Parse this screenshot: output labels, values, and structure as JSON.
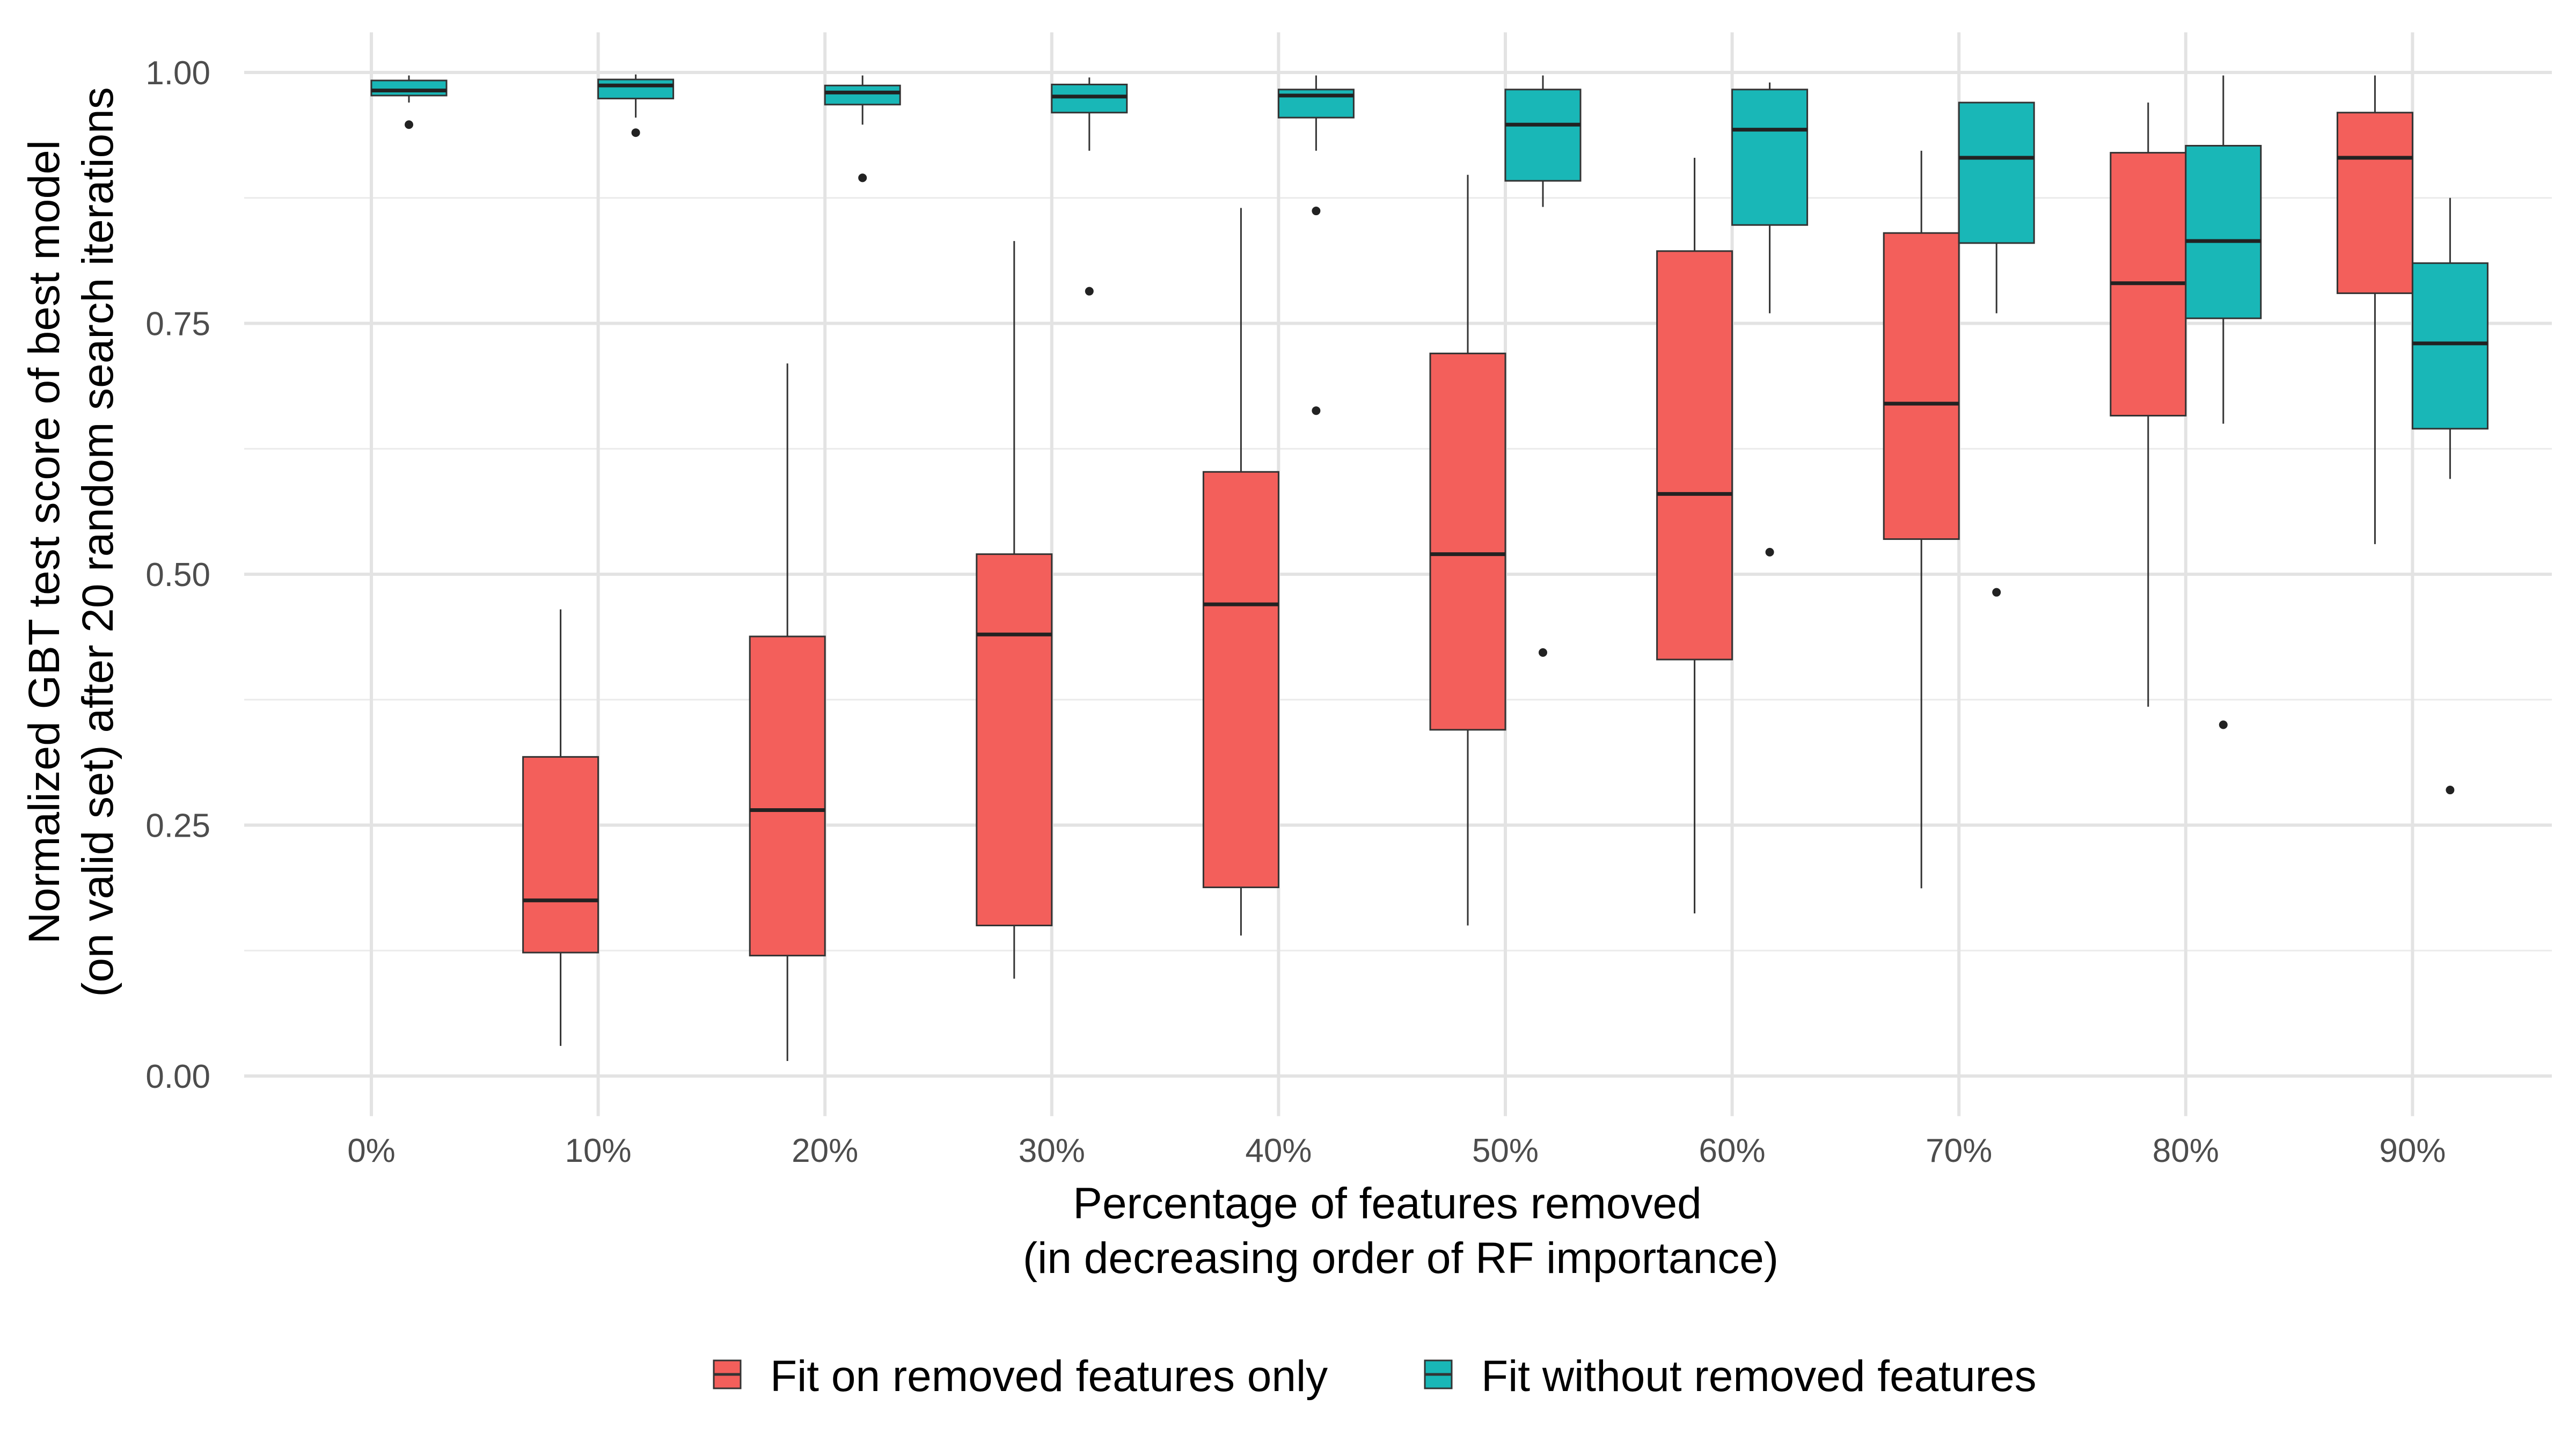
{
  "chart_data": {
    "type": "boxplot",
    "title": "",
    "xlabel_line1": "Percentage of features removed",
    "xlabel_line2": "(in decreasing order of RF importance)",
    "ylabel_line1": "Normalized GBT test score of best model",
    "ylabel_line2": "(on valid set) after 20 random search iterations",
    "ylim": [
      -0.04,
      1.04
    ],
    "y_ticks": [
      {
        "value": 0.0,
        "label": "0.00"
      },
      {
        "value": 0.25,
        "label": "0.25"
      },
      {
        "value": 0.5,
        "label": "0.50"
      },
      {
        "value": 0.75,
        "label": "0.75"
      },
      {
        "value": 1.0,
        "label": "1.00"
      }
    ],
    "categories": [
      "0%",
      "10%",
      "20%",
      "30%",
      "40%",
      "50%",
      "60%",
      "70%",
      "80%",
      "90%"
    ],
    "grid": true,
    "legend_position": "bottom",
    "series": [
      {
        "name": "Fit on removed features only",
        "color": "#F35F5B",
        "boxes": [
          null,
          {
            "whisker_low": 0.03,
            "q1": 0.123,
            "median": 0.175,
            "q3": 0.318,
            "whisker_high": 0.465,
            "outliers": []
          },
          {
            "whisker_low": 0.015,
            "q1": 0.12,
            "median": 0.265,
            "q3": 0.438,
            "whisker_high": 0.71,
            "outliers": []
          },
          {
            "whisker_low": 0.097,
            "q1": 0.15,
            "median": 0.44,
            "q3": 0.52,
            "whisker_high": 0.832,
            "outliers": []
          },
          {
            "whisker_low": 0.14,
            "q1": 0.188,
            "median": 0.47,
            "q3": 0.602,
            "whisker_high": 0.865,
            "outliers": []
          },
          {
            "whisker_low": 0.15,
            "q1": 0.345,
            "median": 0.52,
            "q3": 0.72,
            "whisker_high": 0.898,
            "outliers": []
          },
          {
            "whisker_low": 0.162,
            "q1": 0.415,
            "median": 0.58,
            "q3": 0.822,
            "whisker_high": 0.915,
            "outliers": []
          },
          {
            "whisker_low": 0.187,
            "q1": 0.535,
            "median": 0.67,
            "q3": 0.84,
            "whisker_high": 0.922,
            "outliers": []
          },
          {
            "whisker_low": 0.368,
            "q1": 0.658,
            "median": 0.79,
            "q3": 0.92,
            "whisker_high": 0.97,
            "outliers": []
          },
          {
            "whisker_low": 0.53,
            "q1": 0.78,
            "median": 0.915,
            "q3": 0.96,
            "whisker_high": 0.997,
            "outliers": []
          }
        ]
      },
      {
        "name": "Fit without removed features",
        "color": "#19B7B7",
        "boxes": [
          {
            "whisker_low": 0.97,
            "q1": 0.977,
            "median": 0.982,
            "q3": 0.992,
            "whisker_high": 0.997,
            "outliers": [
              0.948
            ]
          },
          {
            "whisker_low": 0.955,
            "q1": 0.974,
            "median": 0.987,
            "q3": 0.993,
            "whisker_high": 0.998,
            "outliers": [
              0.94
            ]
          },
          {
            "whisker_low": 0.948,
            "q1": 0.968,
            "median": 0.98,
            "q3": 0.987,
            "whisker_high": 0.997,
            "outliers": [
              0.895
            ]
          },
          {
            "whisker_low": 0.922,
            "q1": 0.96,
            "median": 0.976,
            "q3": 0.988,
            "whisker_high": 0.995,
            "outliers": [
              0.782
            ]
          },
          {
            "whisker_low": 0.922,
            "q1": 0.955,
            "median": 0.977,
            "q3": 0.983,
            "whisker_high": 0.997,
            "outliers": [
              0.862,
              0.663
            ]
          },
          {
            "whisker_low": 0.866,
            "q1": 0.892,
            "median": 0.948,
            "q3": 0.983,
            "whisker_high": 0.997,
            "outliers": [
              0.422
            ]
          },
          {
            "whisker_low": 0.76,
            "q1": 0.848,
            "median": 0.943,
            "q3": 0.983,
            "whisker_high": 0.99,
            "outliers": [
              0.522
            ]
          },
          {
            "whisker_low": 0.76,
            "q1": 0.83,
            "median": 0.915,
            "q3": 0.97,
            "whisker_high": 0.97,
            "outliers": [
              0.482
            ]
          },
          {
            "whisker_low": 0.65,
            "q1": 0.755,
            "median": 0.832,
            "q3": 0.927,
            "whisker_high": 0.997,
            "outliers": [
              0.35
            ]
          },
          {
            "whisker_low": 0.595,
            "q1": 0.645,
            "median": 0.73,
            "q3": 0.81,
            "whisker_high": 0.875,
            "outliers": [
              0.285
            ]
          }
        ]
      }
    ]
  }
}
